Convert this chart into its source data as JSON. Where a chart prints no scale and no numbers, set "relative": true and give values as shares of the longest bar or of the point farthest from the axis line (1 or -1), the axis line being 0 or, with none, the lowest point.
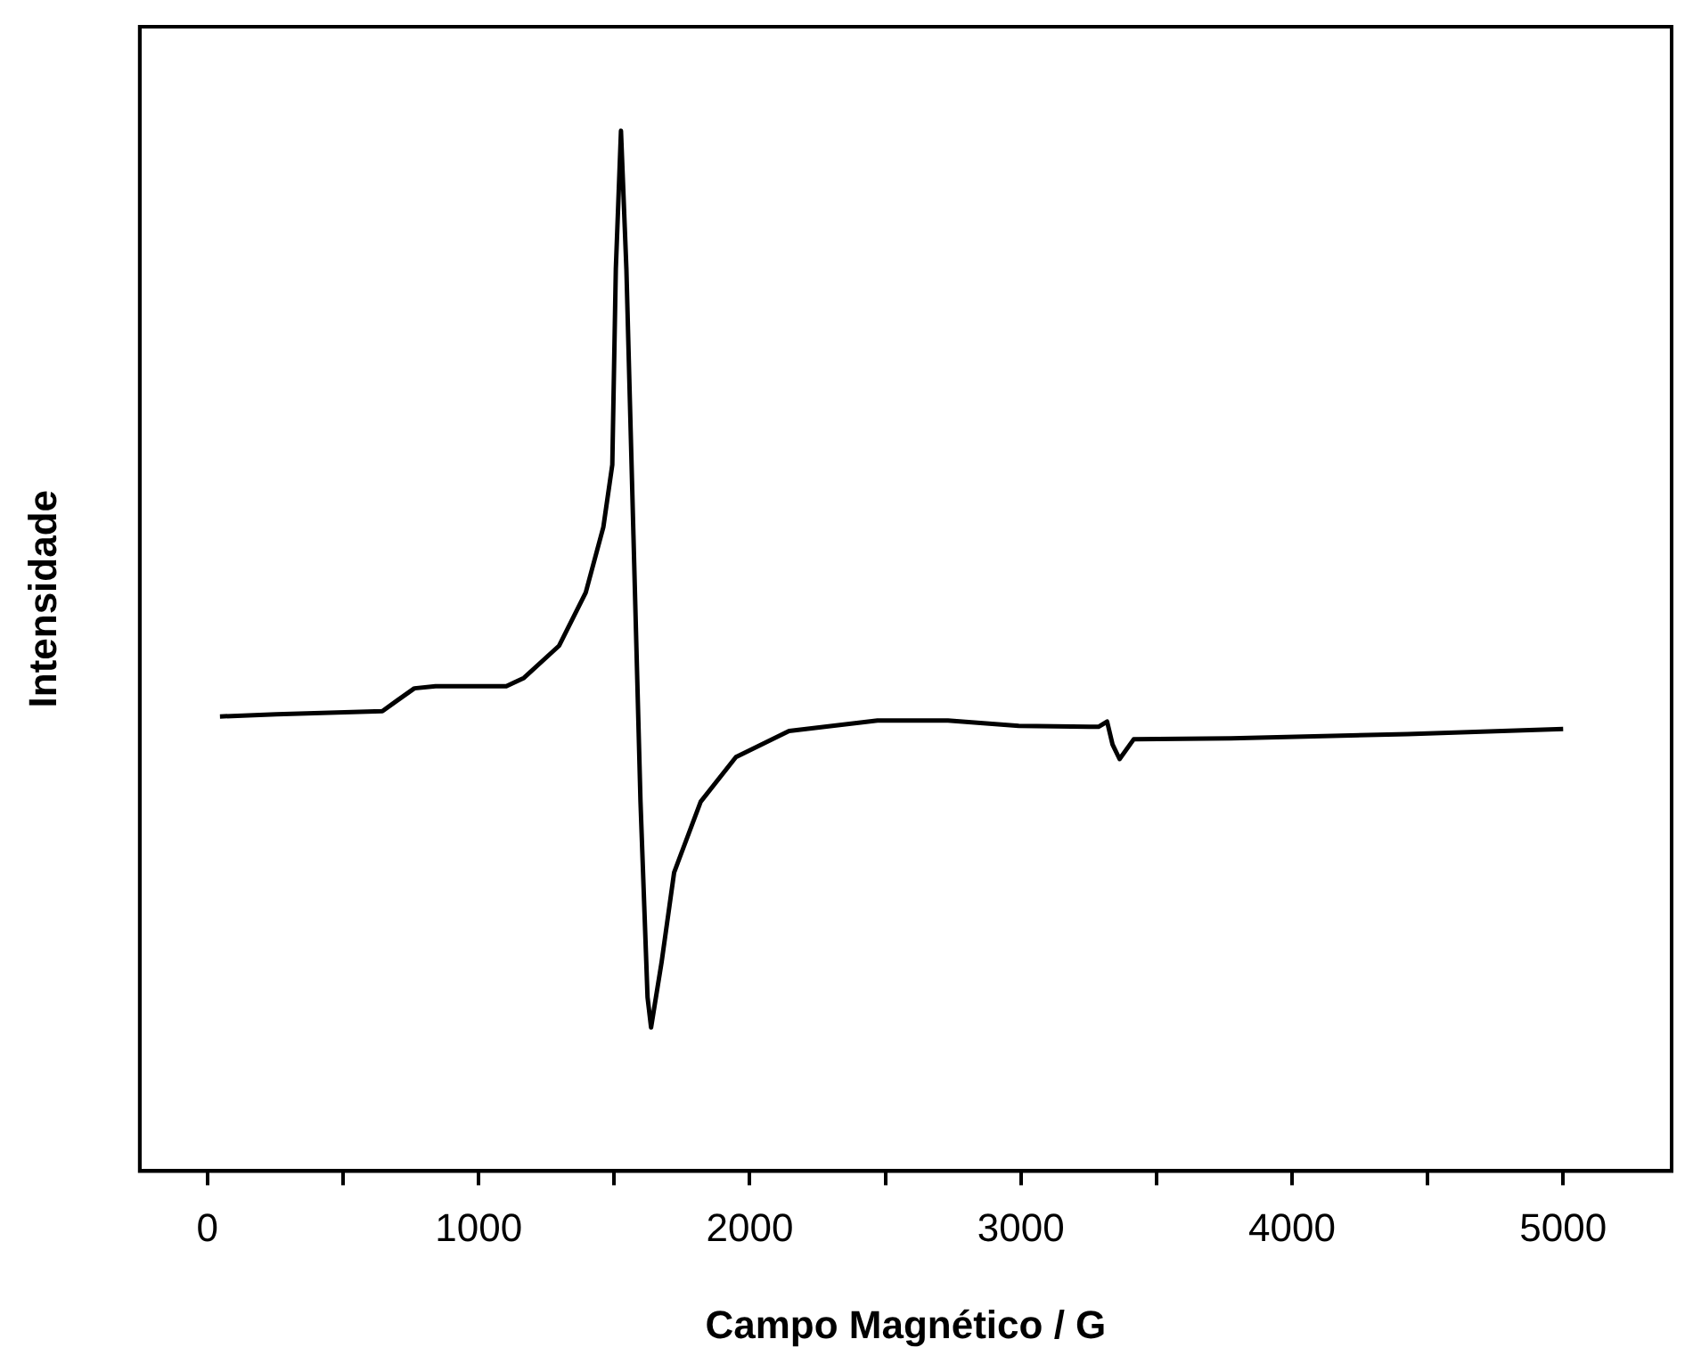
{
  "chart_data": {
    "type": "line",
    "xlabel": "Campo Magnético / G",
    "ylabel": "Intensidade",
    "relative": true,
    "grid": false,
    "legend": false,
    "marker": "none",
    "line_style": "solid",
    "xlim": [
      -250,
      5400
    ],
    "xticks": [
      0,
      {
        "value": 500,
        "label": null
      },
      1000,
      {
        "value": 1500,
        "label": null
      },
      2000,
      {
        "value": 2500,
        "label": null
      },
      3000,
      {
        "value": 3500,
        "label": null
      },
      4000,
      {
        "value": 4500,
        "label": null
      },
      5000
    ],
    "series": [
      {
        "color": "#000000",
        "x": [
          46,
          254,
          645,
          698,
          763,
          841,
          1102,
          1167,
          1297,
          1395,
          1460,
          1493,
          1506,
          1525,
          1545,
          1571,
          1597,
          1623,
          1636,
          1675,
          1721,
          1819,
          1949,
          2145,
          2471,
          2731,
          2992,
          3253,
          3286,
          3318,
          3338,
          3364,
          3416,
          3775,
          4426,
          5000
        ],
        "values": [
          0.437,
          0.439,
          0.442,
          0.452,
          0.464,
          0.466,
          0.466,
          0.474,
          0.505,
          0.556,
          0.619,
          0.679,
          0.867,
          1,
          0.867,
          0.611,
          0.355,
          0.167,
          0.138,
          0.201,
          0.287,
          0.355,
          0.398,
          0.423,
          0.433,
          0.433,
          0.428,
          0.427,
          0.427,
          0.432,
          0.41,
          0.396,
          0.415,
          0.416,
          0.42,
          0.425
        ]
      }
    ]
  }
}
